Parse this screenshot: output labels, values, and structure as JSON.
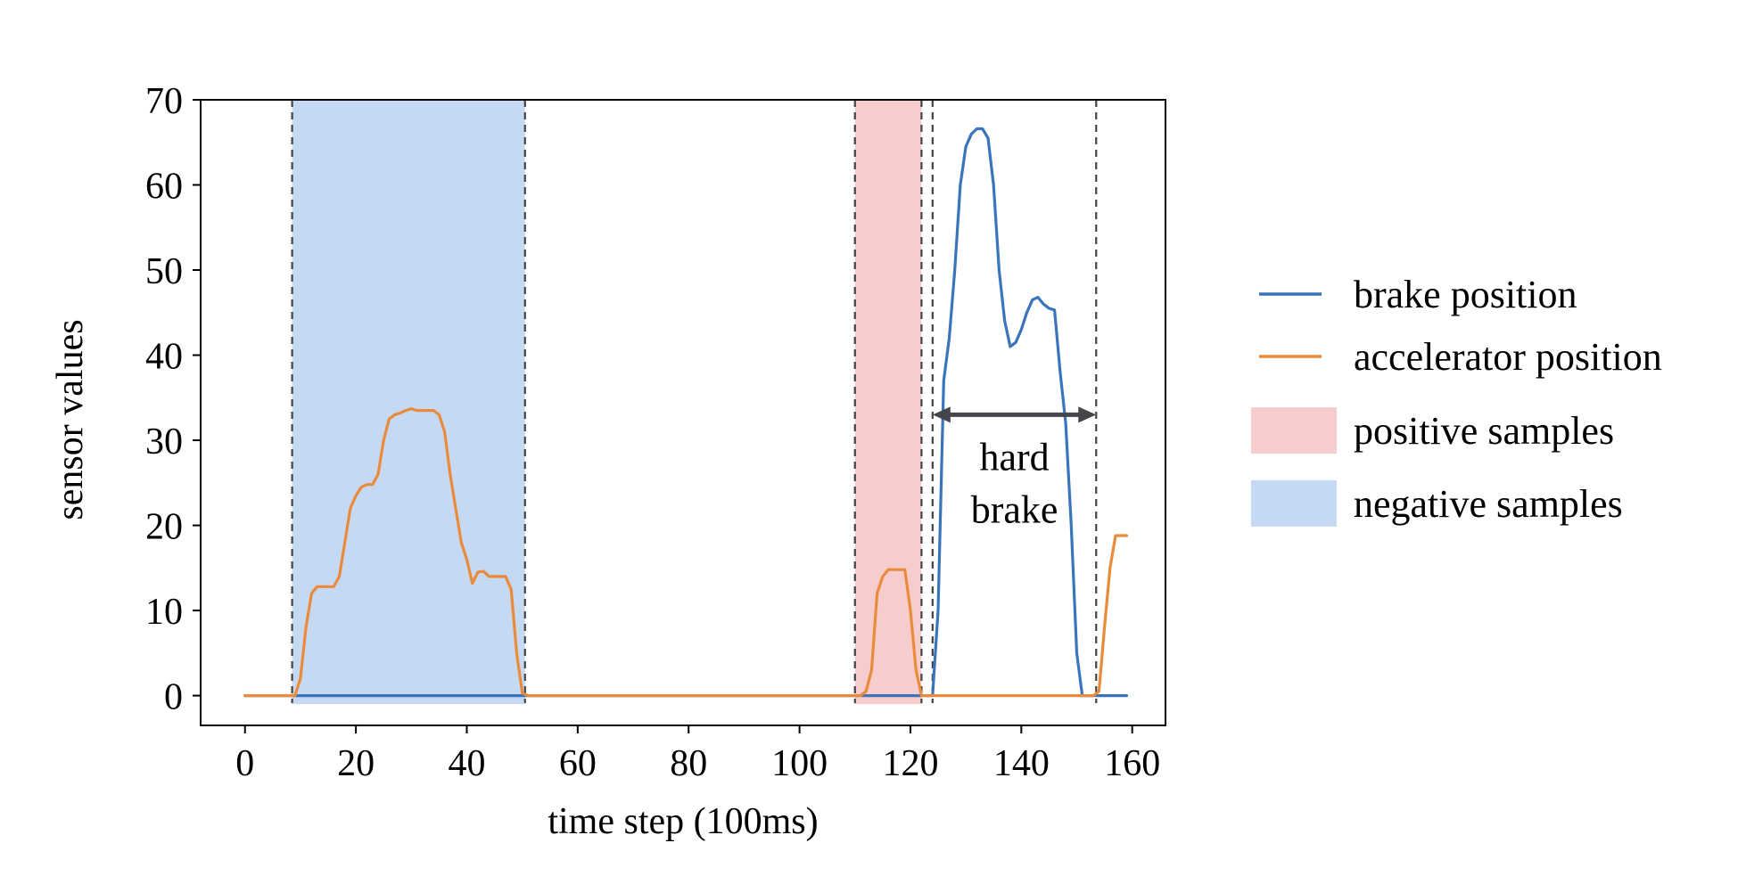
{
  "chart_data": {
    "type": "line",
    "xlabel": "time step (100ms)",
    "ylabel": "sensor values",
    "xlim": [
      -8,
      166
    ],
    "ylim": [
      -3.5,
      70
    ],
    "xticks": [
      0,
      20,
      40,
      60,
      80,
      100,
      120,
      140,
      160
    ],
    "yticks": [
      0,
      10,
      20,
      30,
      40,
      50,
      60,
      70
    ],
    "grid": false,
    "legend_position": "right",
    "series": [
      {
        "name": "brake position",
        "color": "#3a75bc",
        "x": [
          0,
          8,
          10,
          20,
          40,
          60,
          80,
          100,
          120,
          122,
          123,
          124,
          125,
          126,
          127,
          128,
          129,
          130,
          131,
          132,
          133,
          134,
          135,
          136,
          137,
          138,
          139,
          140,
          141,
          142,
          143,
          144,
          145,
          146,
          147,
          148,
          149,
          150,
          151,
          152,
          153,
          154,
          155,
          156,
          157,
          158,
          159
        ],
        "y": [
          0,
          0,
          0,
          0,
          0,
          0,
          0,
          0,
          0,
          0,
          0,
          0,
          10,
          37,
          42,
          50,
          60,
          64.5,
          66,
          66.6,
          66.6,
          65.5,
          60,
          50,
          44,
          41,
          41.5,
          43,
          45,
          46.5,
          46.8,
          46,
          45.5,
          45.3,
          38,
          32,
          20,
          5,
          0,
          0,
          0,
          0,
          0,
          0,
          0,
          0,
          0
        ]
      },
      {
        "name": "accelerator position",
        "color": "#ea8b3c",
        "x": [
          0,
          8,
          9,
          10,
          11,
          12,
          13,
          14,
          15,
          16,
          17,
          18,
          19,
          20,
          21,
          22,
          23,
          24,
          25,
          26,
          27,
          28,
          29,
          30,
          31,
          32,
          33,
          34,
          35,
          36,
          37,
          38,
          39,
          40,
          41,
          42,
          43,
          44,
          45,
          46,
          47,
          48,
          49,
          50,
          51,
          52,
          53,
          60,
          80,
          100,
          109,
          110,
          111,
          112,
          113,
          114,
          115,
          116,
          117,
          118,
          119,
          120,
          121,
          122,
          130,
          140,
          150,
          153,
          154,
          155,
          156,
          157,
          158,
          159
        ],
        "y": [
          0,
          0,
          0,
          2,
          8,
          12,
          12.8,
          12.8,
          12.8,
          12.8,
          14,
          18,
          22,
          23.5,
          24.5,
          24.8,
          24.8,
          26,
          30,
          32.5,
          33,
          33.2,
          33.5,
          33.7,
          33.5,
          33.5,
          33.5,
          33.5,
          33,
          31,
          26,
          22,
          18,
          16,
          13.2,
          14.5,
          14.6,
          14,
          14,
          14,
          14,
          12.5,
          5,
          0.3,
          0,
          0,
          0,
          0,
          0,
          0,
          0,
          0,
          0,
          0.5,
          3,
          12,
          14,
          14.8,
          14.8,
          14.8,
          14.8,
          10,
          3,
          0,
          0,
          0,
          0,
          0,
          0.5,
          8,
          15,
          18.8,
          18.8,
          18.8
        ]
      }
    ],
    "shaded_regions": [
      {
        "name": "negative samples",
        "from": 8.5,
        "to": 50.5,
        "color": "#c6d9f3"
      },
      {
        "name": "positive samples",
        "from": 110,
        "to": 122,
        "color": "#f7cccc"
      }
    ],
    "vlines": [
      8.5,
      50.5,
      110,
      122,
      124,
      153.5
    ],
    "annotations": [
      {
        "text_lines": [
          "hard",
          "brake"
        ],
        "arrow_from_x": 124,
        "arrow_to_x": 153.5,
        "arrow_y": 33
      }
    ],
    "legend": [
      {
        "kind": "line",
        "label": "brake position",
        "color": "#3a75bc"
      },
      {
        "kind": "line",
        "label": "accelerator position",
        "color": "#ea8b3c"
      },
      {
        "kind": "patch",
        "label": "positive samples",
        "color": "#f7cccc"
      },
      {
        "kind": "patch",
        "label": "negative samples",
        "color": "#c6d9f3"
      }
    ]
  }
}
